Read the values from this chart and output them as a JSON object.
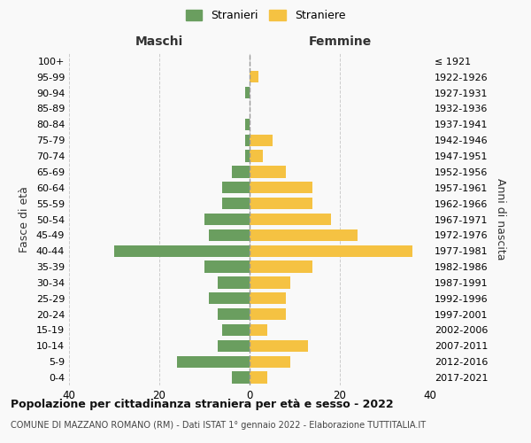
{
  "age_groups": [
    "100+",
    "95-99",
    "90-94",
    "85-89",
    "80-84",
    "75-79",
    "70-74",
    "65-69",
    "60-64",
    "55-59",
    "50-54",
    "45-49",
    "40-44",
    "35-39",
    "30-34",
    "25-29",
    "20-24",
    "15-19",
    "10-14",
    "5-9",
    "0-4"
  ],
  "birth_years": [
    "≤ 1921",
    "1922-1926",
    "1927-1931",
    "1932-1936",
    "1937-1941",
    "1942-1946",
    "1947-1951",
    "1952-1956",
    "1957-1961",
    "1962-1966",
    "1967-1971",
    "1972-1976",
    "1977-1981",
    "1982-1986",
    "1987-1991",
    "1992-1996",
    "1997-2001",
    "2002-2006",
    "2007-2011",
    "2012-2016",
    "2017-2021"
  ],
  "maschi": [
    0,
    0,
    1,
    0,
    1,
    1,
    1,
    4,
    6,
    6,
    10,
    9,
    30,
    10,
    7,
    9,
    7,
    6,
    7,
    16,
    4
  ],
  "femmine": [
    0,
    2,
    0,
    0,
    0,
    5,
    3,
    8,
    14,
    14,
    18,
    24,
    36,
    14,
    9,
    8,
    8,
    4,
    13,
    9,
    4
  ],
  "maschi_color": "#6a9e5f",
  "femmine_color": "#f5c242",
  "background_color": "#f9f9f9",
  "grid_color": "#cccccc",
  "xlim": [
    -40,
    40
  ],
  "title": "Popolazione per cittadinanza straniera per età e sesso - 2022",
  "subtitle": "COMUNE DI MAZZANO ROMANO (RM) - Dati ISTAT 1° gennaio 2022 - Elaborazione TUTTITALIA.IT",
  "legend_maschi": "Stranieri",
  "legend_femmine": "Straniere",
  "ylabel_left": "Fasce di età",
  "ylabel_right": "Anni di nascita",
  "header_maschi": "Maschi",
  "header_femmine": "Femmine",
  "xticks": [
    -40,
    -20,
    0,
    20,
    40
  ],
  "xtick_labels": [
    "40",
    "20",
    "0",
    "20",
    "40"
  ]
}
